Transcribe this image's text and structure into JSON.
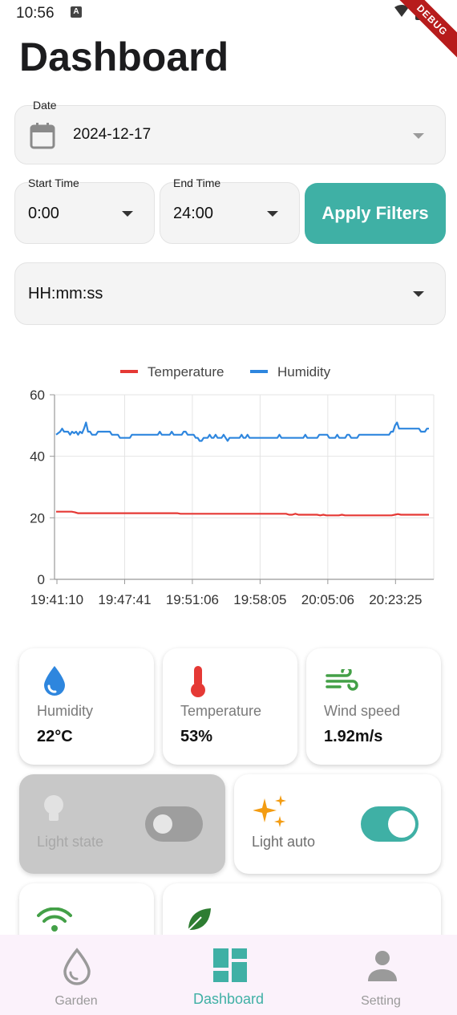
{
  "status": {
    "time": "10:56",
    "notif_letter": "A",
    "debug": "DEBUG"
  },
  "title": "Dashboard",
  "date_field": {
    "label": "Date",
    "value": "2024-12-17"
  },
  "start_time": {
    "label": "Start Time",
    "value": "0:00"
  },
  "end_time": {
    "label": "End Time",
    "value": "24:00"
  },
  "apply_label": "Apply Filters",
  "format_field": {
    "value": "HH:mm:ss"
  },
  "chart_data": {
    "type": "line",
    "legend_position": "top",
    "ylim": [
      0,
      60
    ],
    "yticks": [
      "0",
      "20",
      "40",
      "60"
    ],
    "xticks": [
      "19:41:10",
      "19:47:41",
      "19:51:06",
      "19:58:05",
      "20:05:06",
      "20:23:25"
    ],
    "grid": true,
    "series": [
      {
        "name": "Temperature",
        "color": "#e53935",
        "values": [
          22,
          22,
          22,
          22,
          22,
          22,
          21.8,
          21.5,
          21.5,
          21.5,
          21.5,
          21.5,
          21.5,
          21.5,
          21.5,
          21.5,
          21.5,
          21.5,
          21.5,
          21.5,
          21.5,
          21.5,
          21.5,
          21.5,
          21.5,
          21.5,
          21.5,
          21.5,
          21.5,
          21.5,
          21.5,
          21.5,
          21.5,
          21.5,
          21.5,
          21.5,
          21.5,
          21.5,
          21.5,
          21.5,
          21.3,
          21.3,
          21.3,
          21.3,
          21.3,
          21.3,
          21.3,
          21.3,
          21.3,
          21.3,
          21.3,
          21.3,
          21.3,
          21.3,
          21.3,
          21.3,
          21.3,
          21.3,
          21.3,
          21.3,
          21.3,
          21.3,
          21.3,
          21.3,
          21.3,
          21.3,
          21.3,
          21.3,
          21.3,
          21.3,
          21.3,
          21.3,
          21.3,
          21.3,
          21.3,
          21,
          21,
          21.3,
          21,
          21,
          21,
          21,
          21,
          21,
          21,
          20.8,
          21,
          20.8,
          20.8,
          20.8,
          20.8,
          20.8,
          21,
          20.8,
          20.8,
          20.8,
          20.8,
          20.8,
          20.8,
          20.8,
          20.8,
          20.8,
          20.8,
          20.8,
          20.8,
          20.8,
          20.8,
          20.8,
          20.8,
          21,
          21.2,
          21,
          21,
          21,
          21,
          21,
          21,
          21,
          21,
          21,
          21
        ]
      },
      {
        "name": "Humidity",
        "color": "#2e86de",
        "values": [
          47,
          47.5,
          48,
          49,
          48,
          48,
          48,
          47,
          48,
          47.5,
          48,
          47,
          48,
          47.5,
          49,
          51,
          48,
          48,
          47,
          47,
          47,
          48,
          48,
          48,
          48,
          48,
          48,
          48,
          47,
          47,
          47,
          47,
          46,
          46,
          46,
          46,
          46,
          46,
          47,
          47,
          47,
          47,
          47,
          47,
          47,
          47,
          47,
          47,
          47,
          47,
          47,
          47,
          48,
          47,
          47,
          47,
          47,
          47,
          48,
          47,
          47,
          47,
          47,
          47,
          48,
          48,
          47,
          47,
          47,
          47,
          46,
          46,
          45,
          45,
          46,
          46,
          46,
          47,
          46,
          46,
          47,
          46,
          46,
          46,
          47,
          46,
          45,
          46,
          46,
          46,
          46,
          46,
          46,
          47,
          46,
          46,
          47,
          46,
          46,
          46,
          46,
          46,
          46,
          46,
          46,
          46,
          46,
          46,
          46,
          46,
          46,
          46,
          47,
          46,
          46,
          46,
          46,
          46,
          46,
          46,
          46,
          46,
          46,
          46,
          46,
          47,
          46,
          46,
          46,
          46,
          46,
          46,
          47,
          47,
          47,
          47,
          47,
          46,
          46,
          46,
          46,
          47,
          46,
          46,
          46,
          46,
          47,
          47,
          46,
          46,
          46,
          46,
          47,
          47,
          47,
          47,
          47,
          47,
          47,
          47,
          47,
          47,
          47,
          47,
          47,
          47,
          47,
          47,
          48,
          48,
          50,
          51,
          49,
          49,
          49,
          49,
          49,
          49,
          49,
          49,
          49,
          49,
          49,
          48,
          48,
          48,
          49,
          49
        ]
      }
    ]
  },
  "cards": {
    "humidity": {
      "label": "Humidity",
      "value": "22°C"
    },
    "temperature": {
      "label": "Temperature",
      "value": "53%"
    },
    "wind": {
      "label": "Wind speed",
      "value": "1.92m/s"
    },
    "light_state": {
      "label": "Light state",
      "on": false
    },
    "light_auto": {
      "label": "Light auto",
      "on": true
    }
  },
  "colors": {
    "accent": "#3fb0a5",
    "temperature": "#e53935",
    "humidity": "#2e86de",
    "wind": "#43a047",
    "light_auto": "#f39c12"
  },
  "nav": {
    "garden": {
      "label": "Garden",
      "icon": "water-drop-icon"
    },
    "dashboard": {
      "label": "Dashboard",
      "icon": "dashboard-grid-icon"
    },
    "setting": {
      "label": "Setting",
      "icon": "person-icon"
    }
  }
}
